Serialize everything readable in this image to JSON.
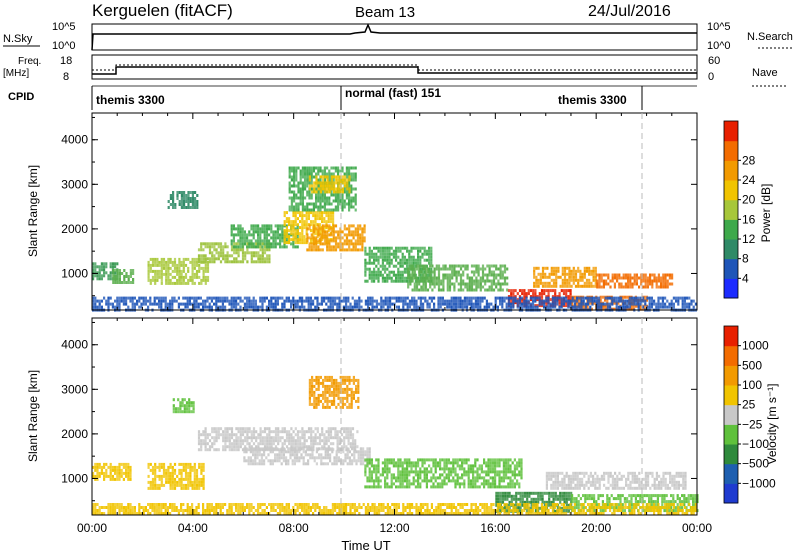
{
  "header": {
    "station": "Kerguelen (fitACF)",
    "beam": "Beam 13",
    "date": "24/Jul/2016"
  },
  "top_panels": {
    "nsky_label": "N.Sky",
    "nsky_ticks": [
      "10^5",
      "10^0"
    ],
    "nsearch_label": "N.Search",
    "nsearch_ticks": [
      "10^5",
      "10^0"
    ],
    "freq_label": "Freq.",
    "freq_unit": "[MHz]",
    "freq_ticks": [
      "18",
      "8"
    ],
    "nave_label": "Nave",
    "nave_ticks": [
      "60",
      "0"
    ],
    "cpid_label": "CPID",
    "cpid_segments": [
      "themis 3300",
      "normal (fast) 151",
      "themis 3300"
    ]
  },
  "chart_data": [
    {
      "type": "heatmap",
      "panel": "power",
      "ylabel": "Slant Range [km]",
      "yticks": [
        1000,
        2000,
        3000,
        4000
      ],
      "ylim": [
        180,
        4600
      ],
      "xlim_hours": [
        0,
        24
      ],
      "colorbar_label": "Power [dB]",
      "colorbar_ticks": [
        "4",
        "8",
        "12",
        "16",
        "20",
        "24",
        "28"
      ],
      "colorbar_colors": [
        "#1c2bff",
        "#1e55b8",
        "#2f8a67",
        "#3ea94b",
        "#a7c73a",
        "#f1c400",
        "#f29a00",
        "#f36c00",
        "#e82000"
      ],
      "echo_regions": [
        {
          "t0": 0.0,
          "t1": 1.0,
          "r0": 900,
          "r1": 1250,
          "color": "#3a9a55"
        },
        {
          "t0": 0.8,
          "t1": 1.6,
          "r0": 800,
          "r1": 1100,
          "color": "#5aae4c"
        },
        {
          "t0": 2.2,
          "t1": 4.6,
          "r0": 800,
          "r1": 1350,
          "color": "#a8c83a"
        },
        {
          "t0": 4.2,
          "t1": 7.0,
          "r0": 1250,
          "r1": 1700,
          "color": "#9cc23c"
        },
        {
          "t0": 5.5,
          "t1": 8.2,
          "r0": 1600,
          "r1": 2100,
          "color": "#3ea94b"
        },
        {
          "t0": 7.6,
          "t1": 9.6,
          "r0": 1700,
          "r1": 2400,
          "color": "#f1c400"
        },
        {
          "t0": 8.5,
          "t1": 10.8,
          "r0": 1500,
          "r1": 2100,
          "color": "#f29a00"
        },
        {
          "t0": 7.8,
          "t1": 10.5,
          "r0": 2400,
          "r1": 3400,
          "color": "#3ea94b"
        },
        {
          "t0": 8.6,
          "t1": 10.2,
          "r0": 2800,
          "r1": 3200,
          "color": "#f1c400"
        },
        {
          "t0": 3.0,
          "t1": 4.2,
          "r0": 2500,
          "r1": 2850,
          "color": "#2f8a67"
        },
        {
          "t0": 10.8,
          "t1": 13.5,
          "r0": 800,
          "r1": 1600,
          "color": "#3ea94b"
        },
        {
          "t0": 12.5,
          "t1": 16.5,
          "r0": 650,
          "r1": 1200,
          "color": "#5aae4c"
        },
        {
          "t0": 16.5,
          "t1": 19.0,
          "r0": 300,
          "r1": 650,
          "color": "#e82000"
        },
        {
          "t0": 19.0,
          "t1": 22.0,
          "r0": 200,
          "r1": 500,
          "color": "#f36c00"
        },
        {
          "t0": 17.5,
          "t1": 20.0,
          "r0": 700,
          "r1": 1150,
          "color": "#f29a00"
        },
        {
          "t0": 20.0,
          "t1": 23.0,
          "r0": 700,
          "r1": 1000,
          "color": "#f36c00"
        },
        {
          "t0": 0.0,
          "t1": 24.0,
          "r0": 200,
          "r1": 480,
          "color": "#1e55b8"
        }
      ]
    },
    {
      "type": "heatmap",
      "panel": "velocity",
      "ylabel": "Slant Range [km]",
      "yticks": [
        1000,
        2000,
        3000,
        4000
      ],
      "ylim": [
        180,
        4600
      ],
      "xlim_hours": [
        0,
        24
      ],
      "xticks": [
        "00:00",
        "04:00",
        "08:00",
        "12:00",
        "16:00",
        "20:00",
        "00:00"
      ],
      "xlabel": "Time UT",
      "colorbar_label": "Velocity [m s⁻¹]",
      "colorbar_ticks": [
        "1000",
        "500",
        "100",
        "25",
        "−25",
        "−100",
        "−500",
        "−1000"
      ],
      "colorbar_colors": [
        "#1f3bd0",
        "#1e5fb0",
        "#2f8a3c",
        "#5fc13c",
        "#c8c8c8",
        "#f1c400",
        "#f29a00",
        "#f36c00",
        "#e82000"
      ],
      "echo_regions": [
        {
          "t0": 0.0,
          "t1": 1.5,
          "r0": 950,
          "r1": 1350,
          "color": "#f1c400"
        },
        {
          "t0": 2.2,
          "t1": 4.4,
          "r0": 800,
          "r1": 1350,
          "color": "#f1c400"
        },
        {
          "t0": 4.2,
          "t1": 10.5,
          "r0": 1650,
          "r1": 2150,
          "color": "#c8c8c8"
        },
        {
          "t0": 6.0,
          "t1": 11.0,
          "r0": 1300,
          "r1": 1700,
          "color": "#c8c8c8"
        },
        {
          "t0": 8.6,
          "t1": 10.6,
          "r0": 2600,
          "r1": 3300,
          "color": "#f29a00"
        },
        {
          "t0": 3.2,
          "t1": 4.0,
          "r0": 2500,
          "r1": 2800,
          "color": "#5fc13c"
        },
        {
          "t0": 10.8,
          "t1": 17.0,
          "r0": 800,
          "r1": 1450,
          "color": "#5fc13c"
        },
        {
          "t0": 16.0,
          "t1": 19.0,
          "r0": 250,
          "r1": 700,
          "color": "#2f8a3c"
        },
        {
          "t0": 19.0,
          "t1": 24.0,
          "r0": 300,
          "r1": 650,
          "color": "#5fc13c"
        },
        {
          "t0": 18.0,
          "t1": 23.5,
          "r0": 750,
          "r1": 1150,
          "color": "#c8c8c8"
        },
        {
          "t0": 0.0,
          "t1": 24.0,
          "r0": 200,
          "r1": 450,
          "color": "#f1c400"
        }
      ]
    }
  ]
}
